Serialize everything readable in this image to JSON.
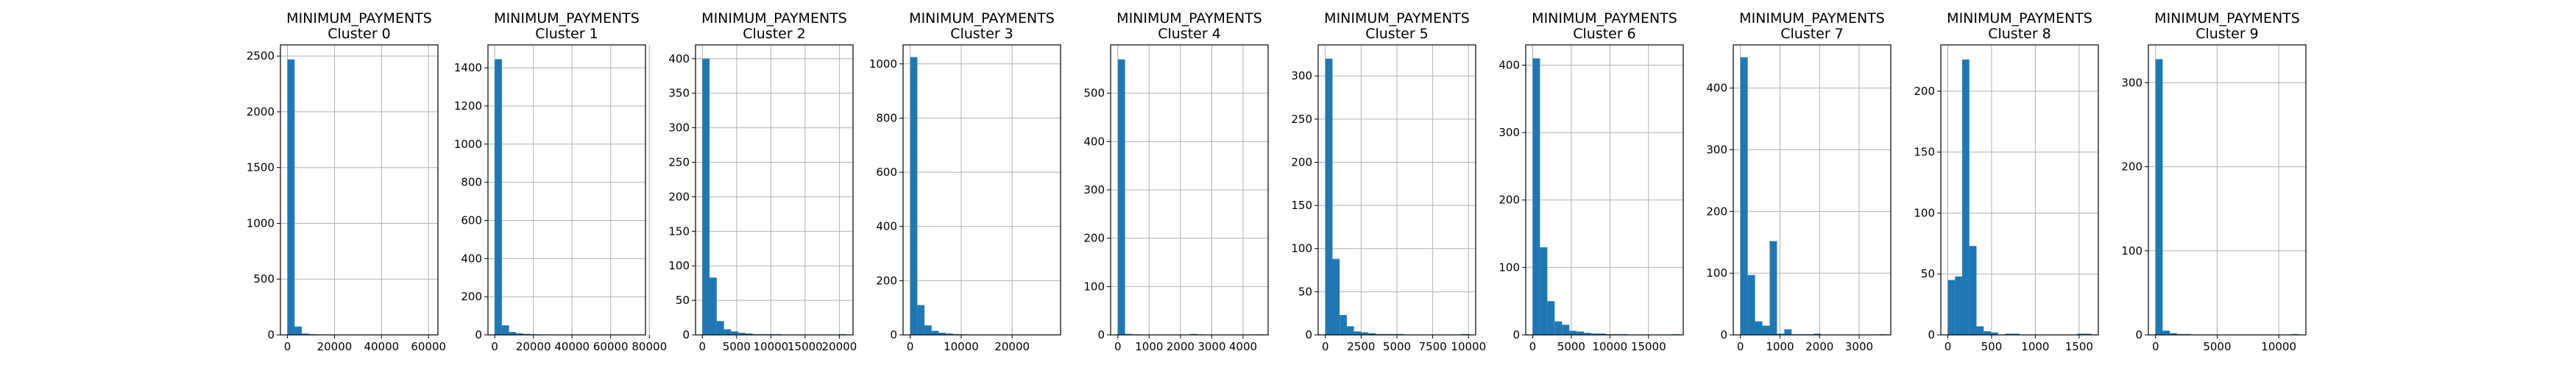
{
  "figure": {
    "suptitle": ""
  },
  "colors": {
    "bar": "#1f77b4",
    "grid": "#b0b0b0",
    "axis": "#000000"
  },
  "chart_data": [
    {
      "type": "bar",
      "variable": "MINIMUM_PAYMENTS",
      "cluster": "Cluster 0",
      "title": "MINIMUM_PAYMENTS",
      "subtitle": "Cluster 0",
      "xlim": [
        -3000,
        64000
      ],
      "ylim": [
        0,
        2600
      ],
      "bin_start": 0,
      "bin_width": 3050,
      "values": [
        2470,
        75,
        12,
        6,
        4,
        2,
        1,
        1,
        1,
        1,
        1,
        0,
        0,
        0,
        0,
        0,
        0,
        0,
        0,
        1
      ],
      "xticks": [
        0,
        20000,
        40000,
        60000
      ],
      "xtick_labels": [
        "0",
        "20000",
        "40000",
        "60000"
      ],
      "yticks": [
        0,
        500,
        1000,
        1500,
        2000,
        2500
      ],
      "ytick_labels": [
        "0",
        "500",
        "1000",
        "1500",
        "2000",
        "2500"
      ]
    },
    {
      "type": "bar",
      "variable": "MINIMUM_PAYMENTS",
      "cluster": "Cluster 1",
      "title": "MINIMUM_PAYMENTS",
      "subtitle": "Cluster 1",
      "xlim": [
        -3500,
        78000
      ],
      "ylim": [
        0,
        1520
      ],
      "bin_start": 0,
      "bin_width": 3700,
      "values": [
        1445,
        50,
        15,
        8,
        5,
        3,
        2,
        2,
        1,
        1,
        1,
        1,
        0,
        0,
        0,
        0,
        0,
        0,
        0,
        1
      ],
      "xticks": [
        0,
        20000,
        40000,
        60000,
        80000
      ],
      "xtick_labels": [
        "0",
        "20000",
        "40000",
        "60000",
        "80000"
      ],
      "yticks": [
        0,
        200,
        400,
        600,
        800,
        1000,
        1200,
        1400
      ],
      "ytick_labels": [
        "0",
        "200",
        "400",
        "600",
        "800",
        "1000",
        "1200",
        "1400"
      ]
    },
    {
      "type": "bar",
      "variable": "MINIMUM_PAYMENTS",
      "cluster": "Cluster 2",
      "title": "MINIMUM_PAYMENTS",
      "subtitle": "Cluster 2",
      "xlim": [
        -1000,
        22000
      ],
      "ylim": [
        0,
        420
      ],
      "bin_start": 0,
      "bin_width": 1050,
      "values": [
        400,
        83,
        20,
        8,
        5,
        3,
        2,
        1,
        1,
        1,
        1,
        0,
        0,
        0,
        0,
        0,
        0,
        0,
        0,
        1
      ],
      "xticks": [
        0,
        5000,
        10000,
        15000,
        20000
      ],
      "xtick_labels": [
        "0",
        "5000",
        "10000",
        "15000",
        "20000"
      ],
      "yticks": [
        0,
        50,
        100,
        150,
        200,
        250,
        300,
        350,
        400
      ],
      "ytick_labels": [
        "0",
        "50",
        "100",
        "150",
        "200",
        "250",
        "300",
        "350",
        "400"
      ]
    },
    {
      "type": "bar",
      "variable": "MINIMUM_PAYMENTS",
      "cluster": "Cluster 3",
      "title": "MINIMUM_PAYMENTS",
      "subtitle": "Cluster 3",
      "xlim": [
        -1400,
        29500
      ],
      "ylim": [
        0,
        1070
      ],
      "bin_start": 0,
      "bin_width": 1400,
      "values": [
        1025,
        110,
        35,
        15,
        8,
        5,
        3,
        2,
        1,
        1,
        1,
        1,
        0,
        0,
        0,
        0,
        0,
        0,
        0,
        1
      ],
      "xticks": [
        0,
        10000,
        20000
      ],
      "xtick_labels": [
        "0",
        "10000",
        "20000"
      ],
      "yticks": [
        0,
        200,
        400,
        600,
        800,
        1000
      ],
      "ytick_labels": [
        "0",
        "200",
        "400",
        "600",
        "800",
        "1000"
      ]
    },
    {
      "type": "bar",
      "variable": "MINIMUM_PAYMENTS",
      "cluster": "Cluster 4",
      "title": "MINIMUM_PAYMENTS",
      "subtitle": "Cluster 4",
      "xlim": [
        -230,
        4800
      ],
      "ylim": [
        0,
        600
      ],
      "bin_start": 0,
      "bin_width": 230,
      "values": [
        570,
        2,
        1,
        0,
        0,
        0,
        0,
        0,
        0,
        0,
        2,
        1,
        0,
        0,
        0,
        0,
        0,
        0,
        0,
        1
      ],
      "xticks": [
        0,
        1000,
        2000,
        3000,
        4000
      ],
      "xtick_labels": [
        "0",
        "1000",
        "2000",
        "3000",
        "4000"
      ],
      "yticks": [
        0,
        100,
        200,
        300,
        400,
        500
      ],
      "ytick_labels": [
        "0",
        "100",
        "200",
        "300",
        "400",
        "500"
      ]
    },
    {
      "type": "bar",
      "variable": "MINIMUM_PAYMENTS",
      "cluster": "Cluster 5",
      "title": "MINIMUM_PAYMENTS",
      "subtitle": "Cluster 5",
      "xlim": [
        -500,
        10500
      ],
      "ylim": [
        0,
        336
      ],
      "bin_start": 0,
      "bin_width": 500,
      "values": [
        320,
        88,
        23,
        10,
        4,
        3,
        2,
        1,
        1,
        1,
        1,
        0,
        0,
        0,
        0,
        0,
        0,
        0,
        0,
        1
      ],
      "xticks": [
        0,
        2500,
        5000,
        7500,
        10000
      ],
      "xtick_labels": [
        "0",
        "2500",
        "5000",
        "7500",
        "10000"
      ],
      "yticks": [
        0,
        50,
        100,
        150,
        200,
        250,
        300
      ],
      "ytick_labels": [
        "0",
        "50",
        "100",
        "150",
        "200",
        "250",
        "300"
      ]
    },
    {
      "type": "bar",
      "variable": "MINIMUM_PAYMENTS",
      "cluster": "Cluster 6",
      "title": "MINIMUM_PAYMENTS",
      "subtitle": "Cluster 6",
      "xlim": [
        -900,
        19500
      ],
      "ylim": [
        0,
        430
      ],
      "bin_start": 0,
      "bin_width": 950,
      "values": [
        410,
        130,
        50,
        20,
        15,
        6,
        5,
        3,
        2,
        2,
        1,
        1,
        1,
        0,
        0,
        0,
        0,
        0,
        0,
        1
      ],
      "xticks": [
        0,
        5000,
        10000,
        15000
      ],
      "xtick_labels": [
        "0",
        "5000",
        "10000",
        "15000"
      ],
      "yticks": [
        0,
        100,
        200,
        300,
        400
      ],
      "ytick_labels": [
        "0",
        "100",
        "200",
        "300",
        "400"
      ]
    },
    {
      "type": "bar",
      "variable": "MINIMUM_PAYMENTS",
      "cluster": "Cluster 7",
      "title": "MINIMUM_PAYMENTS",
      "subtitle": "Cluster 7",
      "xlim": [
        -180,
        3800
      ],
      "ylim": [
        0,
        470
      ],
      "bin_start": 0,
      "bin_width": 185,
      "values": [
        450,
        97,
        22,
        15,
        152,
        2,
        9,
        1,
        1,
        1,
        2,
        0,
        0,
        0,
        0,
        0,
        0,
        0,
        0,
        1
      ],
      "xticks": [
        0,
        1000,
        2000,
        3000
      ],
      "xtick_labels": [
        "0",
        "1000",
        "2000",
        "3000"
      ],
      "yticks": [
        0,
        100,
        200,
        300,
        400
      ],
      "ytick_labels": [
        "0",
        "100",
        "200",
        "300",
        "400"
      ]
    },
    {
      "type": "bar",
      "variable": "MINIMUM_PAYMENTS",
      "cluster": "Cluster 8",
      "title": "MINIMUM_PAYMENTS",
      "subtitle": "Cluster 8",
      "xlim": [
        -80,
        1720
      ],
      "ylim": [
        0,
        238
      ],
      "bin_start": 0,
      "bin_width": 82,
      "values": [
        45,
        48,
        226,
        73,
        7,
        3,
        2,
        0,
        1,
        1,
        0,
        0,
        0,
        0,
        0,
        0,
        0,
        0,
        1,
        1
      ],
      "xticks": [
        0,
        500,
        1000,
        1500
      ],
      "xtick_labels": [
        "0",
        "500",
        "1000",
        "1500"
      ],
      "yticks": [
        0,
        50,
        100,
        150,
        200
      ],
      "ytick_labels": [
        "0",
        "50",
        "100",
        "150",
        "200"
      ]
    },
    {
      "type": "bar",
      "variable": "MINIMUM_PAYMENTS",
      "cluster": "Cluster 9",
      "title": "MINIMUM_PAYMENTS",
      "subtitle": "Cluster 9",
      "xlim": [
        -580,
        12200
      ],
      "ylim": [
        0,
        345
      ],
      "bin_start": 0,
      "bin_width": 580,
      "values": [
        328,
        5,
        2,
        1,
        1,
        0,
        0,
        0,
        0,
        0,
        0,
        0,
        0,
        0,
        0,
        0,
        0,
        0,
        0,
        1
      ],
      "xticks": [
        0,
        5000,
        10000
      ],
      "xtick_labels": [
        "0",
        "5000",
        "10000"
      ],
      "yticks": [
        0,
        100,
        200,
        300
      ],
      "ytick_labels": [
        "0",
        "100",
        "200",
        "300"
      ]
    }
  ]
}
